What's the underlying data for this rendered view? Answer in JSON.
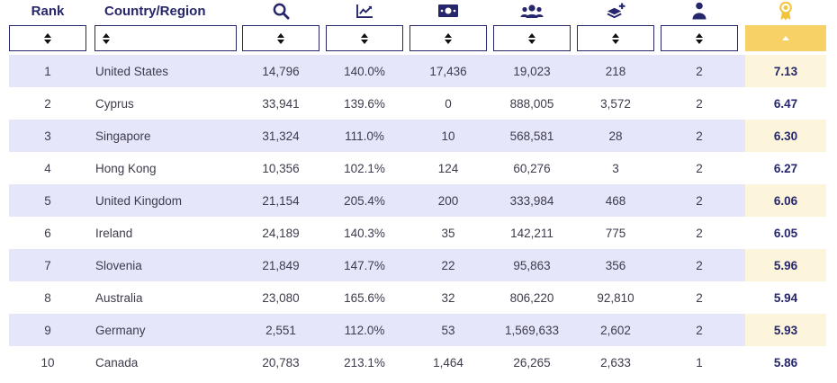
{
  "header": {
    "rank_label": "Rank",
    "country_label": "Country/Region",
    "icons": [
      "search-icon",
      "trend-chart-icon",
      "money-icon",
      "people-group-icon",
      "layers-plus-icon",
      "person-icon",
      "medal-icon"
    ]
  },
  "colors": {
    "navy": "#25266b",
    "row_shade": "#e6e6fa",
    "score_highlight": "#fdf5db",
    "active_sort": "#f7d166",
    "medal": "#f2c33c"
  },
  "rows": [
    {
      "rank": "1",
      "country": "United States",
      "c1": "14,796",
      "c2": "140.0%",
      "c3": "17,436",
      "c4": "19,023",
      "c5": "218",
      "c6": "2",
      "score": "7.13"
    },
    {
      "rank": "2",
      "country": "Cyprus",
      "c1": "33,941",
      "c2": "139.6%",
      "c3": "0",
      "c4": "888,005",
      "c5": "3,572",
      "c6": "2",
      "score": "6.47"
    },
    {
      "rank": "3",
      "country": "Singapore",
      "c1": "31,324",
      "c2": "111.0%",
      "c3": "10",
      "c4": "568,581",
      "c5": "28",
      "c6": "2",
      "score": "6.30"
    },
    {
      "rank": "4",
      "country": "Hong Kong",
      "c1": "10,356",
      "c2": "102.1%",
      "c3": "124",
      "c4": "60,276",
      "c5": "3",
      "c6": "2",
      "score": "6.27"
    },
    {
      "rank": "5",
      "country": "United Kingdom",
      "c1": "21,154",
      "c2": "205.4%",
      "c3": "200",
      "c4": "333,984",
      "c5": "468",
      "c6": "2",
      "score": "6.06"
    },
    {
      "rank": "6",
      "country": "Ireland",
      "c1": "24,189",
      "c2": "140.3%",
      "c3": "35",
      "c4": "142,211",
      "c5": "775",
      "c6": "2",
      "score": "6.05"
    },
    {
      "rank": "7",
      "country": "Slovenia",
      "c1": "21,849",
      "c2": "147.7%",
      "c3": "22",
      "c4": "95,863",
      "c5": "356",
      "c6": "2",
      "score": "5.96"
    },
    {
      "rank": "8",
      "country": "Australia",
      "c1": "23,080",
      "c2": "165.6%",
      "c3": "32",
      "c4": "806,220",
      "c5": "92,810",
      "c6": "2",
      "score": "5.94"
    },
    {
      "rank": "9",
      "country": "Germany",
      "c1": "2,551",
      "c2": "112.0%",
      "c3": "53",
      "c4": "1,569,633",
      "c5": "2,602",
      "c6": "2",
      "score": "5.93"
    },
    {
      "rank": "10",
      "country": "Canada",
      "c1": "20,783",
      "c2": "213.1%",
      "c3": "1,464",
      "c4": "26,265",
      "c5": "2,633",
      "c6": "1",
      "score": "5.86"
    }
  ]
}
